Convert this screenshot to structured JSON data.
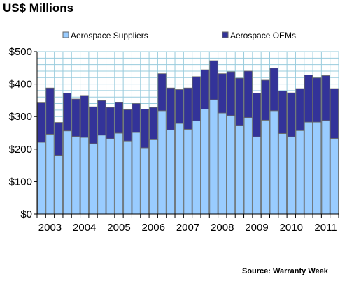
{
  "title": "US$ Millions",
  "source": "Source: Warranty Week",
  "colors": {
    "suppliers": "#99ccff",
    "oems": "#333399",
    "plot_bg": "#ffffff",
    "grid": "#99ccdd",
    "bar_edge": "#666666"
  },
  "chart_data": {
    "type": "bar",
    "stacked": true,
    "title": "US$ Millions",
    "ylim": [
      0,
      500
    ],
    "yticks": [
      "$0",
      "$100",
      "$200",
      "$300",
      "$400",
      "$500"
    ],
    "ytick_values": [
      0,
      100,
      200,
      300,
      400,
      500
    ],
    "xtick_labels": [
      "2003",
      "2004",
      "2005",
      "2006",
      "2007",
      "2008",
      "2009",
      "2010",
      "2011"
    ],
    "legend_position": "top",
    "grid": true,
    "series": [
      {
        "name": "Aerospace Suppliers",
        "values": [
          221,
          246,
          179,
          256,
          239,
          236,
          217,
          243,
          232,
          249,
          225,
          251,
          204,
          229,
          318,
          259,
          279,
          261,
          287,
          323,
          352,
          311,
          303,
          273,
          297,
          238,
          289,
          318,
          248,
          238,
          257,
          283,
          283,
          288,
          233
        ]
      },
      {
        "name": "Aerospace OEMs",
        "values": [
          121,
          142,
          103,
          116,
          115,
          129,
          113,
          106,
          96,
          94,
          96,
          89,
          119,
          99,
          114,
          129,
          104,
          127,
          136,
          121,
          120,
          121,
          135,
          145,
          143,
          134,
          123,
          131,
          131,
          135,
          129,
          145,
          136,
          138,
          153
        ]
      }
    ]
  }
}
